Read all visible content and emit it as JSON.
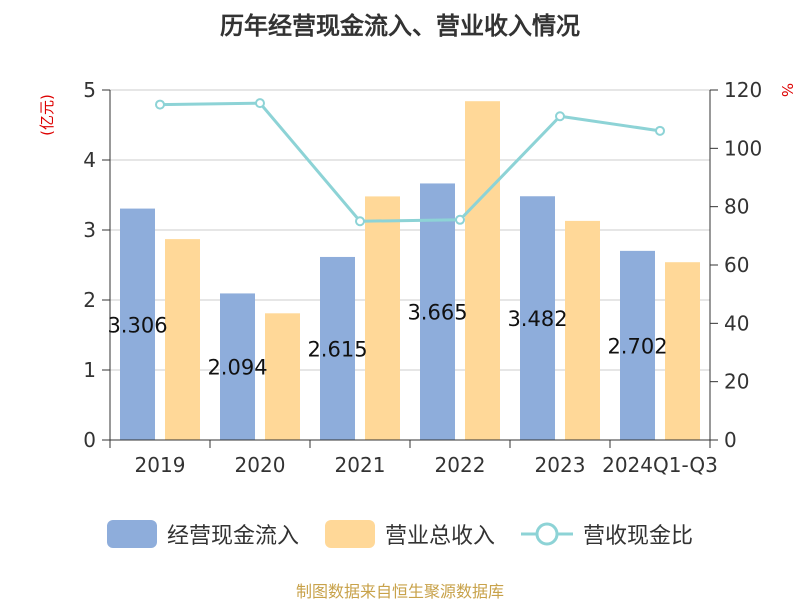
{
  "title": "历年经营现金流入、营业收入情况",
  "source": "制图数据来自恒生聚源数据库",
  "colors": {
    "cash": "#8eaddb",
    "revenue": "#ffd898",
    "ratio": "#8dd3d6"
  },
  "chart_data": {
    "type": "bar",
    "categories": [
      "2019",
      "2020",
      "2021",
      "2022",
      "2023",
      "2024Q1-Q3"
    ],
    "series": [
      {
        "name": "经营现金流入",
        "values": [
          3.306,
          2.094,
          2.615,
          3.665,
          3.482,
          2.702
        ],
        "axis": "left",
        "kind": "bar"
      },
      {
        "name": "营业总收入",
        "values": [
          2.87,
          1.81,
          3.48,
          4.84,
          3.13,
          2.54
        ],
        "axis": "left",
        "kind": "bar"
      },
      {
        "name": "营收现金比",
        "values": [
          115,
          115.5,
          75,
          75.5,
          111,
          106
        ],
        "axis": "right",
        "kind": "line"
      }
    ],
    "data_labels": [
      "3.306",
      "2.094",
      "2.615",
      "3.665",
      "3.482",
      "2.702"
    ],
    "ylabel": "(亿元)",
    "y2label": "%",
    "ylim": [
      0,
      5
    ],
    "y2lim": [
      0,
      120
    ],
    "yticks": [
      "0",
      "1",
      "2",
      "3",
      "4",
      "5"
    ],
    "y2ticks": [
      "0",
      "20",
      "40",
      "60",
      "80",
      "100",
      "120"
    ],
    "grid": true,
    "legend_position": "bottom"
  }
}
